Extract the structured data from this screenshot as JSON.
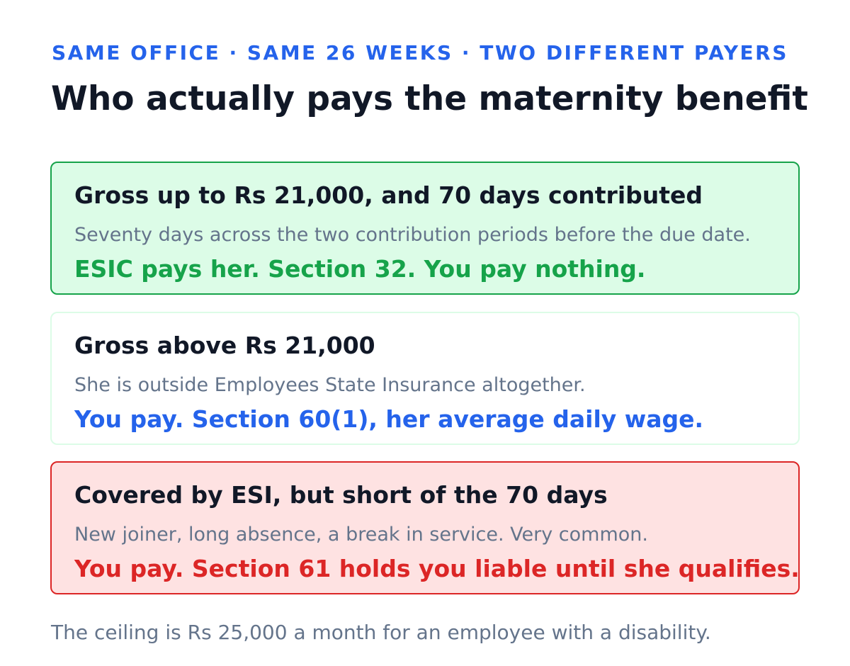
{
  "header": {
    "kicker": "SAME OFFICE · SAME 26 WEEKS · TWO DIFFERENT PAYERS",
    "title": "Who actually pays the maternity benefit"
  },
  "cards": [
    {
      "heading": "Gross up to Rs 21,000, and 70 days contributed",
      "detail": "Seventy days across the two contribution periods before the due date.",
      "verdict": "ESIC pays her. Section 32. You pay nothing.",
      "accent": "#16a34a"
    },
    {
      "heading": "Gross above Rs 21,000",
      "detail": "She is outside Employees State Insurance altogether.",
      "verdict": "You pay. Section 60(1), her average daily wage.",
      "accent": "#2563eb"
    },
    {
      "heading": "Covered by ESI, but short of the 70 days",
      "detail": "New joiner, long absence, a break in service. Very common.",
      "verdict": "You pay. Section 61 holds you liable until she qualifies.",
      "accent": "#dc2626"
    }
  ],
  "footnote": "The ceiling is Rs 25,000 a month for an employee with a disability."
}
